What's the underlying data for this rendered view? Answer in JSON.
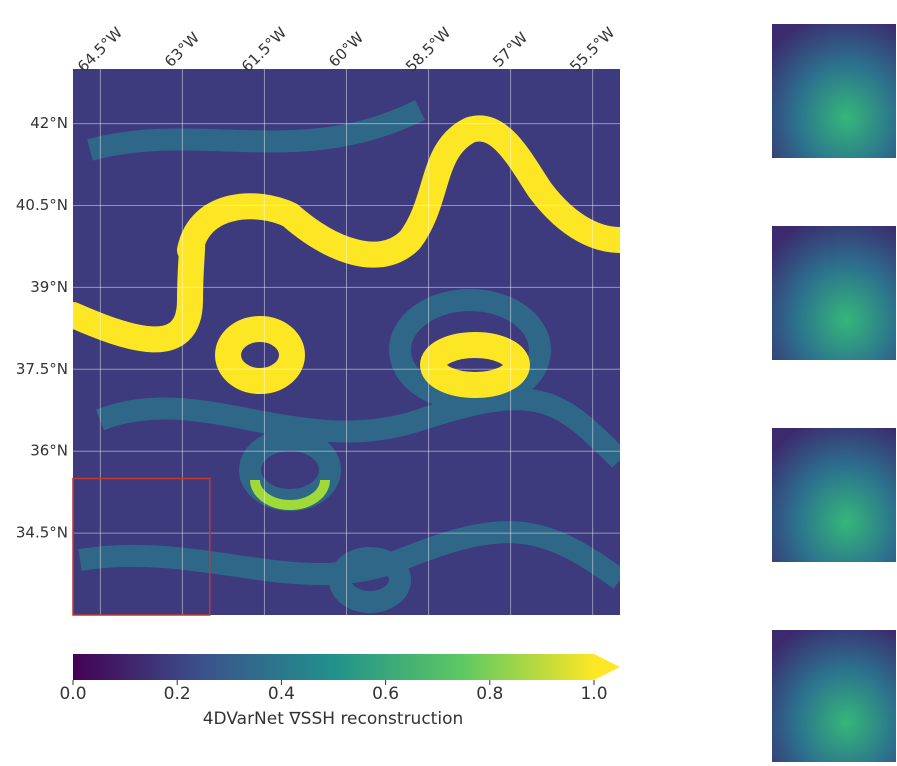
{
  "map": {
    "lonlim": [
      -65,
      -55
    ],
    "latlim": [
      33,
      43
    ],
    "lonticks": [
      {
        "value": -64.5,
        "label": "64.5°W"
      },
      {
        "value": -63,
        "label": "63°W"
      },
      {
        "value": -61.5,
        "label": "61.5°W"
      },
      {
        "value": -60,
        "label": "60°W"
      },
      {
        "value": -58.5,
        "label": "58.5°W"
      },
      {
        "value": -57,
        "label": "57°W"
      },
      {
        "value": -55.5,
        "label": "55.5°W"
      }
    ],
    "latticks": [
      {
        "value": 42,
        "label": "42°N"
      },
      {
        "value": 40.5,
        "label": "40.5°N"
      },
      {
        "value": 39,
        "label": "39°N"
      },
      {
        "value": 37.5,
        "label": "37.5°N"
      },
      {
        "value": 36,
        "label": "36°N"
      },
      {
        "value": 34.5,
        "label": "34.5°N"
      }
    ],
    "grid": true,
    "region": {
      "lon": [
        -65,
        -62.5
      ],
      "lat": [
        33,
        35.5
      ],
      "color": "#c0392b"
    }
  },
  "colorbar": {
    "label": "4DVarNet ∇SSH reconstruction",
    "lim": [
      0,
      1
    ],
    "ticks": [
      {
        "value": 0,
        "label": "0.0"
      },
      0.2,
      0.4,
      0.6,
      0.8,
      {
        "value": 1,
        "label": "1.0"
      }
    ]
  }
}
